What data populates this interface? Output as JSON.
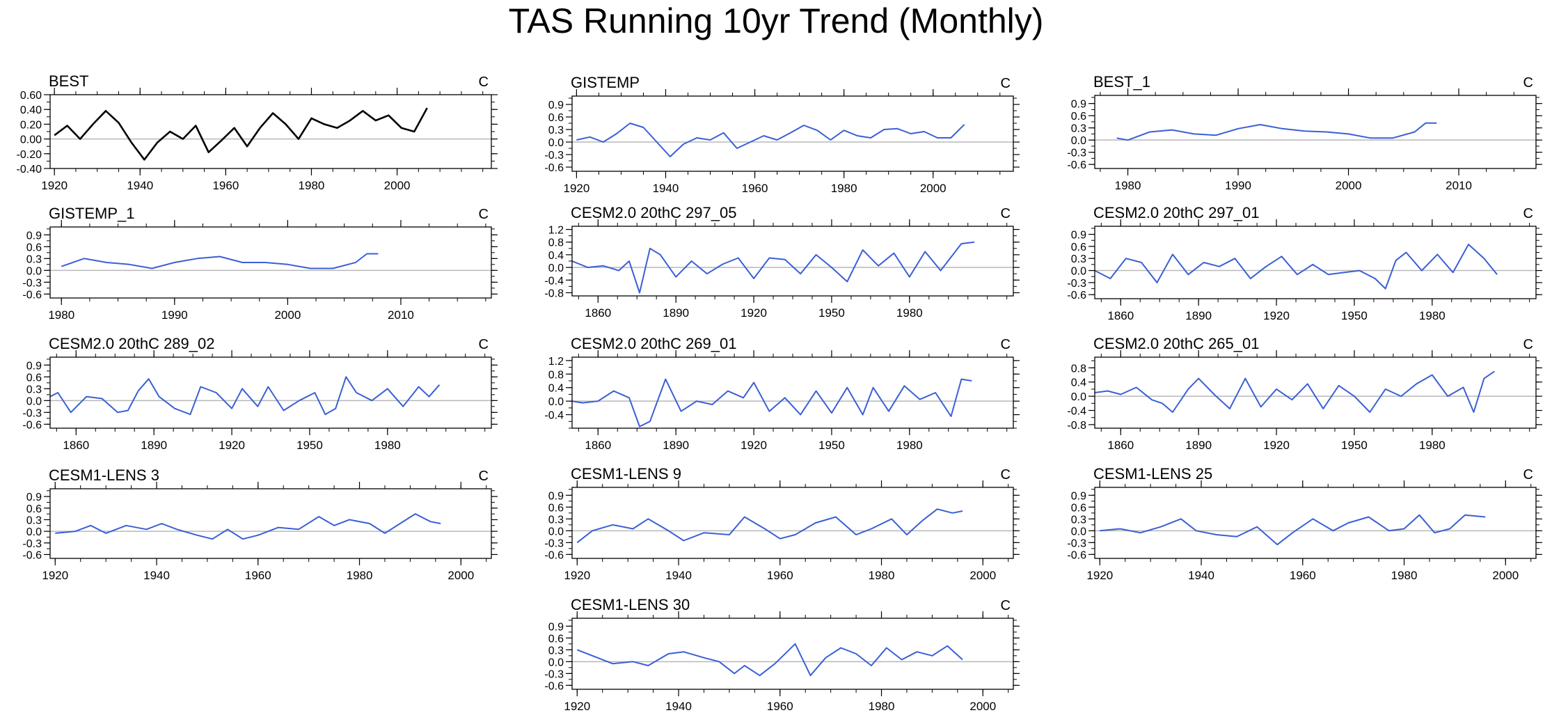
{
  "title": "TAS Running 10yr Trend (Monthly)",
  "chart_data": [
    {
      "type": "line",
      "title": "BEST",
      "units": "C",
      "color": "#000000",
      "xticks": [
        1920,
        1940,
        1960,
        1980,
        2000
      ],
      "xlim": [
        1919,
        2022
      ],
      "yticks": [
        "0.60",
        "0.40",
        "0.20",
        "0.00",
        "-0.20",
        "-0.40"
      ],
      "ylim": [
        -0.4,
        0.6
      ],
      "series": [
        {
          "x": [
            1920,
            1923,
            1926,
            1929,
            1932,
            1935,
            1938,
            1941,
            1944,
            1947,
            1950,
            1953,
            1956,
            1959,
            1962,
            1965,
            1968,
            1971,
            1974,
            1977,
            1980,
            1983,
            1986,
            1989,
            1992,
            1995,
            1998,
            2001,
            2004,
            2007
          ],
          "y": [
            0.05,
            0.18,
            0.0,
            0.2,
            0.38,
            0.22,
            -0.05,
            -0.28,
            -0.05,
            0.1,
            0.0,
            0.18,
            -0.18,
            -0.02,
            0.15,
            -0.1,
            0.15,
            0.35,
            0.2,
            0.0,
            0.28,
            0.2,
            0.15,
            0.25,
            0.38,
            0.25,
            0.32,
            0.15,
            0.1,
            0.42
          ]
        }
      ]
    },
    {
      "type": "line",
      "title": "GISTEMP",
      "units": "C",
      "color": "#3a5fd6",
      "xticks": [
        1920,
        1940,
        1960,
        1980,
        2000
      ],
      "xlim": [
        1919,
        2018
      ],
      "yticks": [
        "0.9",
        "0.6",
        "0.3",
        "0.0",
        "-0.3",
        "-0.6"
      ],
      "ylim": [
        -0.7,
        1.1
      ],
      "series": [
        {
          "x": [
            1920,
            1923,
            1926,
            1929,
            1932,
            1935,
            1938,
            1941,
            1944,
            1947,
            1950,
            1953,
            1956,
            1959,
            1962,
            1965,
            1968,
            1971,
            1974,
            1977,
            1980,
            1983,
            1986,
            1989,
            1992,
            1995,
            1998,
            2001,
            2004,
            2007
          ],
          "y": [
            0.05,
            0.12,
            0.0,
            0.2,
            0.45,
            0.35,
            0.0,
            -0.35,
            -0.05,
            0.1,
            0.05,
            0.22,
            -0.15,
            0.0,
            0.15,
            0.05,
            0.22,
            0.4,
            0.28,
            0.05,
            0.28,
            0.15,
            0.1,
            0.3,
            0.32,
            0.2,
            0.25,
            0.1,
            0.1,
            0.42
          ]
        }
      ]
    },
    {
      "type": "line",
      "title": "BEST_1",
      "units": "C",
      "color": "#3a5fd6",
      "xticks": [
        1980,
        1990,
        2000,
        2010
      ],
      "xlim": [
        1977,
        2017
      ],
      "yticks": [
        "0.9",
        "0.6",
        "0.3",
        "0.0",
        "-0.3",
        "-0.6"
      ],
      "ylim": [
        -0.7,
        1.1
      ],
      "series": [
        {
          "x": [
            1979,
            1980,
            1982,
            1984,
            1986,
            1988,
            1990,
            1992,
            1994,
            1996,
            1998,
            2000,
            2002,
            2004,
            2006,
            2007,
            2008
          ],
          "y": [
            0.05,
            0.0,
            0.2,
            0.25,
            0.15,
            0.12,
            0.28,
            0.38,
            0.28,
            0.22,
            0.2,
            0.15,
            0.05,
            0.05,
            0.2,
            0.42,
            0.42
          ]
        }
      ]
    },
    {
      "type": "line",
      "title": "GISTEMP_1",
      "units": "C",
      "color": "#3a5fd6",
      "xticks": [
        1980,
        1990,
        2000,
        2010
      ],
      "xlim": [
        1979,
        2018
      ],
      "yticks": [
        "0.9",
        "0.6",
        "0.3",
        "0.0",
        "-0.3",
        "-0.6"
      ],
      "ylim": [
        -0.7,
        1.1
      ],
      "series": [
        {
          "x": [
            1980,
            1982,
            1984,
            1986,
            1988,
            1990,
            1992,
            1994,
            1996,
            1998,
            2000,
            2002,
            2004,
            2006,
            2007,
            2008
          ],
          "y": [
            0.1,
            0.3,
            0.2,
            0.15,
            0.05,
            0.2,
            0.3,
            0.35,
            0.2,
            0.2,
            0.15,
            0.05,
            0.05,
            0.2,
            0.42,
            0.42
          ]
        }
      ]
    },
    {
      "type": "line",
      "title": "CESM2.0 20thC 297_05",
      "units": "C",
      "color": "#3a5fd6",
      "xticks": [
        1860,
        1890,
        1920,
        1950,
        1980
      ],
      "xlim": [
        1850,
        2020
      ],
      "yticks": [
        "1.2",
        "0.8",
        "0.4",
        "0.0",
        "-0.4",
        "-0.8"
      ],
      "ylim": [
        -0.9,
        1.3
      ],
      "series": [
        {
          "x": [
            1850,
            1856,
            1862,
            1868,
            1872,
            1876,
            1880,
            1884,
            1890,
            1896,
            1902,
            1908,
            1914,
            1920,
            1926,
            1932,
            1938,
            1944,
            1950,
            1956,
            1962,
            1968,
            1974,
            1980,
            1986,
            1992,
            2000,
            2005
          ],
          "y": [
            0.2,
            0.0,
            0.05,
            -0.1,
            0.2,
            -0.8,
            0.6,
            0.4,
            -0.3,
            0.2,
            -0.2,
            0.1,
            0.3,
            -0.35,
            0.3,
            0.25,
            -0.2,
            0.4,
            0.0,
            -0.45,
            0.55,
            0.05,
            0.45,
            -0.3,
            0.5,
            -0.1,
            0.75,
            0.8
          ]
        }
      ]
    },
    {
      "type": "line",
      "title": "CESM2.0 20thC 297_01",
      "units": "C",
      "color": "#3a5fd6",
      "xticks": [
        1860,
        1890,
        1920,
        1950,
        1980
      ],
      "xlim": [
        1850,
        2020
      ],
      "yticks": [
        "0.9",
        "0.6",
        "0.3",
        "0.0",
        "-0.3",
        "-0.6"
      ],
      "ylim": [
        -0.7,
        1.1
      ],
      "series": [
        {
          "x": [
            1850,
            1856,
            1862,
            1868,
            1874,
            1880,
            1886,
            1892,
            1898,
            1904,
            1910,
            1916,
            1922,
            1928,
            1934,
            1940,
            1946,
            1952,
            1958,
            1962,
            1966,
            1970,
            1976,
            1982,
            1988,
            1994,
            2000,
            2005
          ],
          "y": [
            0.0,
            -0.2,
            0.3,
            0.2,
            -0.3,
            0.4,
            -0.1,
            0.2,
            0.1,
            0.3,
            -0.2,
            0.1,
            0.35,
            -0.1,
            0.15,
            -0.1,
            -0.05,
            0.0,
            -0.2,
            -0.45,
            0.25,
            0.45,
            0.0,
            0.4,
            -0.05,
            0.65,
            0.3,
            -0.1
          ]
        }
      ]
    },
    {
      "type": "line",
      "title": "CESM2.0 20thC 289_02",
      "units": "C",
      "color": "#3a5fd6",
      "xticks": [
        1860,
        1890,
        1920,
        1950,
        1980
      ],
      "xlim": [
        1850,
        2020
      ],
      "yticks": [
        "0.9",
        "0.6",
        "0.3",
        "0.0",
        "-0.3",
        "-0.6"
      ],
      "ylim": [
        -0.7,
        1.1
      ],
      "series": [
        {
          "x": [
            1850,
            1853,
            1858,
            1864,
            1870,
            1876,
            1880,
            1884,
            1888,
            1892,
            1898,
            1904,
            1908,
            1914,
            1920,
            1924,
            1930,
            1934,
            1940,
            1946,
            1952,
            1956,
            1960,
            1964,
            1968,
            1974,
            1980,
            1986,
            1992,
            1996,
            2000
          ],
          "y": [
            0.1,
            0.2,
            -0.3,
            0.1,
            0.05,
            -0.3,
            -0.25,
            0.25,
            0.55,
            0.1,
            -0.2,
            -0.35,
            0.35,
            0.2,
            -0.2,
            0.3,
            -0.15,
            0.35,
            -0.25,
            0.0,
            0.2,
            -0.35,
            -0.2,
            0.6,
            0.2,
            0.0,
            0.3,
            -0.15,
            0.35,
            0.1,
            0.4
          ]
        }
      ]
    },
    {
      "type": "line",
      "title": "CESM2.0 20thC 269_01",
      "units": "C",
      "color": "#3a5fd6",
      "xticks": [
        1860,
        1890,
        1920,
        1950,
        1980
      ],
      "xlim": [
        1850,
        2020
      ],
      "yticks": [
        "1.2",
        "0.8",
        "0.4",
        "0.0",
        "-0.4"
      ],
      "ylim": [
        -0.8,
        1.3
      ],
      "series": [
        {
          "x": [
            1850,
            1854,
            1860,
            1866,
            1872,
            1876,
            1880,
            1886,
            1892,
            1898,
            1904,
            1910,
            1916,
            1920,
            1926,
            1932,
            1938,
            1944,
            1950,
            1956,
            1962,
            1966,
            1972,
            1978,
            1984,
            1990,
            1996,
            2000,
            2004
          ],
          "y": [
            0.0,
            -0.05,
            0.0,
            0.3,
            0.1,
            -0.75,
            -0.6,
            0.65,
            -0.3,
            0.0,
            -0.1,
            0.3,
            0.1,
            0.55,
            -0.3,
            0.1,
            -0.4,
            0.3,
            -0.35,
            0.4,
            -0.4,
            0.4,
            -0.3,
            0.45,
            0.05,
            0.25,
            -0.45,
            0.65,
            0.6
          ]
        }
      ]
    },
    {
      "type": "line",
      "title": "CESM2.0 20thC 265_01",
      "units": "C",
      "color": "#3a5fd6",
      "xticks": [
        1860,
        1890,
        1920,
        1950,
        1980
      ],
      "xlim": [
        1850,
        2020
      ],
      "yticks": [
        "0.8",
        "0.4",
        "0.0",
        "-0.4",
        "-0.8"
      ],
      "ylim": [
        -0.9,
        1.1
      ],
      "series": [
        {
          "x": [
            1850,
            1855,
            1860,
            1866,
            1872,
            1876,
            1880,
            1886,
            1890,
            1896,
            1902,
            1908,
            1914,
            1920,
            1926,
            1932,
            1938,
            1944,
            1950,
            1956,
            1962,
            1968,
            1974,
            1980,
            1986,
            1992,
            1996,
            2000,
            2004
          ],
          "y": [
            0.1,
            0.15,
            0.05,
            0.25,
            -0.1,
            -0.2,
            -0.45,
            0.2,
            0.5,
            0.05,
            -0.35,
            0.5,
            -0.3,
            0.2,
            -0.1,
            0.35,
            -0.35,
            0.3,
            0.0,
            -0.45,
            0.2,
            0.0,
            0.35,
            0.6,
            0.0,
            0.25,
            -0.45,
            0.5,
            0.7
          ]
        }
      ]
    },
    {
      "type": "line",
      "title": "CESM1-LENS 3",
      "units": "C",
      "color": "#3a5fd6",
      "xticks": [
        1920,
        1940,
        1960,
        1980,
        2000
      ],
      "xlim": [
        1919,
        2006
      ],
      "yticks": [
        "0.9",
        "0.6",
        "0.3",
        "0.0",
        "-0.3",
        "-0.6"
      ],
      "ylim": [
        -0.7,
        1.1
      ],
      "series": [
        {
          "x": [
            1920,
            1924,
            1927,
            1930,
            1934,
            1938,
            1941,
            1944,
            1948,
            1951,
            1954,
            1957,
            1960,
            1964,
            1968,
            1972,
            1975,
            1978,
            1982,
            1985,
            1988,
            1991,
            1994,
            1996
          ],
          "y": [
            -0.05,
            0.0,
            0.15,
            -0.05,
            0.15,
            0.05,
            0.2,
            0.05,
            -0.1,
            -0.2,
            0.05,
            -0.2,
            -0.1,
            0.1,
            0.05,
            0.38,
            0.15,
            0.3,
            0.2,
            -0.05,
            0.2,
            0.45,
            0.25,
            0.2
          ]
        }
      ]
    },
    {
      "type": "line",
      "title": "CESM1-LENS 9",
      "units": "C",
      "color": "#3a5fd6",
      "xticks": [
        1920,
        1940,
        1960,
        1980,
        2000
      ],
      "xlim": [
        1919,
        2006
      ],
      "yticks": [
        "0.9",
        "0.6",
        "0.3",
        "0.0",
        "-0.3",
        "-0.6"
      ],
      "ylim": [
        -0.7,
        1.1
      ],
      "series": [
        {
          "x": [
            1920,
            1923,
            1927,
            1931,
            1934,
            1938,
            1941,
            1945,
            1950,
            1953,
            1957,
            1960,
            1963,
            1967,
            1971,
            1975,
            1978,
            1982,
            1985,
            1988,
            1991,
            1994,
            1996
          ],
          "y": [
            -0.3,
            0.0,
            0.15,
            0.05,
            0.3,
            0.0,
            -0.25,
            -0.05,
            -0.1,
            0.35,
            0.05,
            -0.2,
            -0.1,
            0.2,
            0.35,
            -0.1,
            0.05,
            0.3,
            -0.1,
            0.25,
            0.55,
            0.45,
            0.5
          ]
        }
      ]
    },
    {
      "type": "line",
      "title": "CESM1-LENS 25",
      "units": "C",
      "color": "#3a5fd6",
      "xticks": [
        1920,
        1940,
        1960,
        1980,
        2000
      ],
      "xlim": [
        1919,
        2006
      ],
      "yticks": [
        "0.9",
        "0.6",
        "0.3",
        "0.0",
        "-0.3",
        "-0.6"
      ],
      "ylim": [
        -0.7,
        1.1
      ],
      "series": [
        {
          "x": [
            1920,
            1924,
            1928,
            1932,
            1936,
            1939,
            1943,
            1947,
            1951,
            1955,
            1958,
            1962,
            1966,
            1969,
            1973,
            1977,
            1980,
            1983,
            1986,
            1989,
            1992,
            1996
          ],
          "y": [
            0.0,
            0.05,
            -0.05,
            0.1,
            0.3,
            0.0,
            -0.1,
            -0.15,
            0.1,
            -0.35,
            -0.05,
            0.3,
            0.0,
            0.2,
            0.35,
            0.0,
            0.05,
            0.4,
            -0.05,
            0.05,
            0.4,
            0.35
          ]
        }
      ]
    },
    {
      "type": "line",
      "title": "CESM1-LENS 30",
      "units": "C",
      "color": "#3a5fd6",
      "xticks": [
        1920,
        1940,
        1960,
        1980,
        2000
      ],
      "xlim": [
        1919,
        2006
      ],
      "yticks": [
        "0.9",
        "0.6",
        "0.3",
        "0.0",
        "-0.3",
        "-0.6"
      ],
      "ylim": [
        -0.7,
        1.1
      ],
      "series": [
        {
          "x": [
            1920,
            1923,
            1927,
            1931,
            1934,
            1938,
            1941,
            1945,
            1948,
            1951,
            1953,
            1956,
            1959,
            1963,
            1966,
            1969,
            1972,
            1975,
            1978,
            1981,
            1984,
            1987,
            1990,
            1993,
            1996
          ],
          "y": [
            0.3,
            0.15,
            -0.05,
            0.0,
            -0.1,
            0.2,
            0.25,
            0.1,
            0.0,
            -0.3,
            -0.1,
            -0.35,
            -0.05,
            0.45,
            -0.35,
            0.1,
            0.35,
            0.2,
            -0.1,
            0.35,
            0.05,
            0.25,
            0.15,
            0.4,
            0.05
          ]
        }
      ]
    }
  ]
}
